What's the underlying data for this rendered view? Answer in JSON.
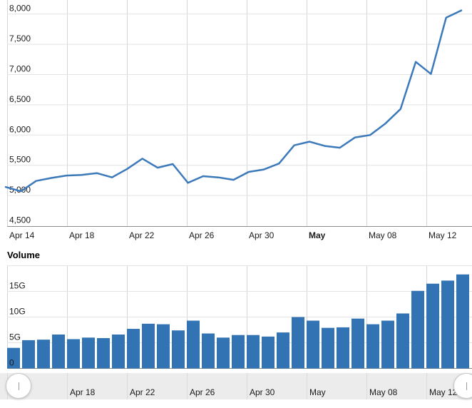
{
  "colors": {
    "line": "#3c79ba",
    "bar": "#3173b3",
    "grid_h": "#e3e3e3",
    "grid_v": "#d6d6d6",
    "axis": "#8c8c8c",
    "text": "#1a1a1a",
    "navigator_bg": "#ececec",
    "navigator_separator": "#dadada",
    "handle_border": "#c9c9c9"
  },
  "chart_data": [
    {
      "type": "line",
      "title": "",
      "x": [
        "Apr 14",
        "Apr 15",
        "Apr 16",
        "Apr 17",
        "Apr 18",
        "Apr 19",
        "Apr 20",
        "Apr 21",
        "Apr 22",
        "Apr 23",
        "Apr 24",
        "Apr 25",
        "Apr 26",
        "Apr 27",
        "Apr 28",
        "Apr 29",
        "Apr 30",
        "May 01",
        "May 02",
        "May 03",
        "May 04",
        "May 05",
        "May 06",
        "May 07",
        "May 08",
        "May 09",
        "May 10",
        "May 11",
        "May 12",
        "May 13",
        "May 14"
      ],
      "values": [
        5140,
        5070,
        5240,
        5290,
        5330,
        5340,
        5370,
        5300,
        5440,
        5610,
        5460,
        5520,
        5210,
        5320,
        5300,
        5260,
        5390,
        5430,
        5530,
        5830,
        5890,
        5820,
        5790,
        5960,
        6000,
        6190,
        6430,
        7210,
        7010,
        7940,
        8060
      ],
      "ylim": [
        4500,
        8100
      ],
      "grid": true,
      "yticks": [
        {
          "value": 4500,
          "label": "4,500"
        },
        {
          "value": 5000,
          "label": "5,000"
        },
        {
          "value": 5500,
          "label": "5,500"
        },
        {
          "value": 6000,
          "label": "6,000"
        },
        {
          "value": 6500,
          "label": "6,500"
        },
        {
          "value": 7000,
          "label": "7,000"
        },
        {
          "value": 7500,
          "label": "7,500"
        },
        {
          "value": 8000,
          "label": "8,000"
        }
      ],
      "xticks": [
        {
          "label": "Apr 14",
          "bold": false
        },
        {
          "label": "Apr 18",
          "bold": false
        },
        {
          "label": "Apr 22",
          "bold": false
        },
        {
          "label": "Apr 26",
          "bold": false
        },
        {
          "label": "Apr 30",
          "bold": false
        },
        {
          "label": "May",
          "bold": true
        },
        {
          "label": "May 08",
          "bold": false
        },
        {
          "label": "May 12",
          "bold": false
        }
      ]
    },
    {
      "type": "bar",
      "title": "Volume",
      "unit": "G",
      "categories": [
        "Apr 14",
        "Apr 15",
        "Apr 16",
        "Apr 17",
        "Apr 18",
        "Apr 19",
        "Apr 20",
        "Apr 21",
        "Apr 22",
        "Apr 23",
        "Apr 24",
        "Apr 25",
        "Apr 26",
        "Apr 27",
        "Apr 28",
        "Apr 29",
        "Apr 30",
        "May 01",
        "May 02",
        "May 03",
        "May 04",
        "May 05",
        "May 06",
        "May 07",
        "May 08",
        "May 09",
        "May 10",
        "May 11",
        "May 12",
        "May 13",
        "May 14"
      ],
      "values": [
        4.0,
        5.5,
        5.6,
        6.6,
        5.7,
        6.0,
        5.9,
        6.6,
        7.7,
        8.7,
        8.6,
        7.4,
        9.3,
        6.8,
        6.0,
        6.5,
        6.5,
        6.2,
        7.0,
        10.0,
        9.3,
        7.9,
        8.0,
        9.7,
        8.6,
        9.3,
        10.7,
        15.1,
        16.5,
        17.1,
        18.3
      ],
      "ylim": [
        0,
        20
      ],
      "grid": true,
      "yticks": [
        {
          "value": 0,
          "label": "0"
        },
        {
          "value": 5,
          "label": "5G"
        },
        {
          "value": 10,
          "label": "10G"
        },
        {
          "value": 15,
          "label": "15G"
        }
      ]
    }
  ],
  "navigator": {
    "labels": [
      "Apr 18",
      "Apr 22",
      "Apr 26",
      "Apr 30",
      "May",
      "May 08",
      "May 12"
    ]
  }
}
